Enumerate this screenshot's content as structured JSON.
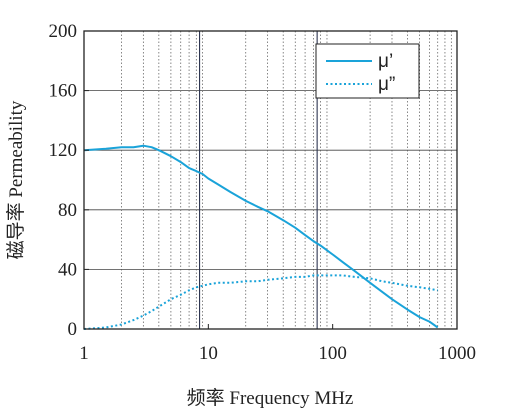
{
  "chart_data": {
    "type": "line",
    "title": "",
    "xlabel": "频率 Frequency MHz",
    "ylabel": "磁导率 Permeability",
    "x_scale": "log",
    "xlim": [
      1,
      1000
    ],
    "ylim": [
      0,
      200
    ],
    "x_ticks": [
      1,
      10,
      100,
      1000
    ],
    "x_tick_labels": [
      "1",
      "10",
      "100",
      "1000"
    ],
    "y_ticks": [
      0,
      40,
      80,
      120,
      160,
      200
    ],
    "y_tick_labels": [
      "0",
      "40",
      "80",
      "120",
      "160",
      "200"
    ],
    "grid": "dotted vertical minor lines, solid horizontal lines",
    "highlight_vlines": [
      8.5,
      75
    ],
    "legend_position": "top-right",
    "series": [
      {
        "name": "μ’",
        "style": "solid",
        "color": "#1aa3d9",
        "x": [
          1,
          1.5,
          2,
          2.5,
          3,
          3.5,
          4,
          5,
          6,
          7,
          8,
          9,
          10,
          12,
          15,
          20,
          25,
          30,
          40,
          50,
          60,
          70,
          80,
          100,
          120,
          150,
          200,
          250,
          300,
          400,
          500,
          600,
          700
        ],
        "y": [
          120,
          121,
          122,
          122,
          123,
          122,
          120,
          116,
          112,
          108,
          106,
          104,
          101,
          97,
          92,
          86,
          82,
          79,
          73,
          68,
          63,
          59,
          56,
          50,
          45,
          39,
          31,
          25,
          20,
          13,
          8,
          5,
          1
        ]
      },
      {
        "name": "μ”",
        "style": "dotted",
        "color": "#1aa3d9",
        "x": [
          1,
          1.5,
          2,
          2.5,
          3,
          3.5,
          4,
          5,
          6,
          7,
          8,
          9,
          10,
          12,
          15,
          20,
          25,
          30,
          40,
          50,
          60,
          70,
          80,
          100,
          120,
          150,
          200,
          250,
          300,
          400,
          500,
          600,
          700
        ],
        "y": [
          0,
          1,
          3,
          6,
          9,
          12,
          15,
          20,
          23,
          26,
          28,
          29,
          30,
          31,
          31,
          32,
          32,
          33,
          34,
          35,
          35,
          36,
          36,
          36,
          36,
          35,
          34,
          32,
          31,
          29,
          28,
          27,
          26
        ]
      }
    ]
  },
  "legend": {
    "mu_prime": "μ’",
    "mu_double_prime": "μ”"
  },
  "colors": {
    "series": "#1aa3d9",
    "axis": "#222222",
    "grid": "#555555"
  }
}
